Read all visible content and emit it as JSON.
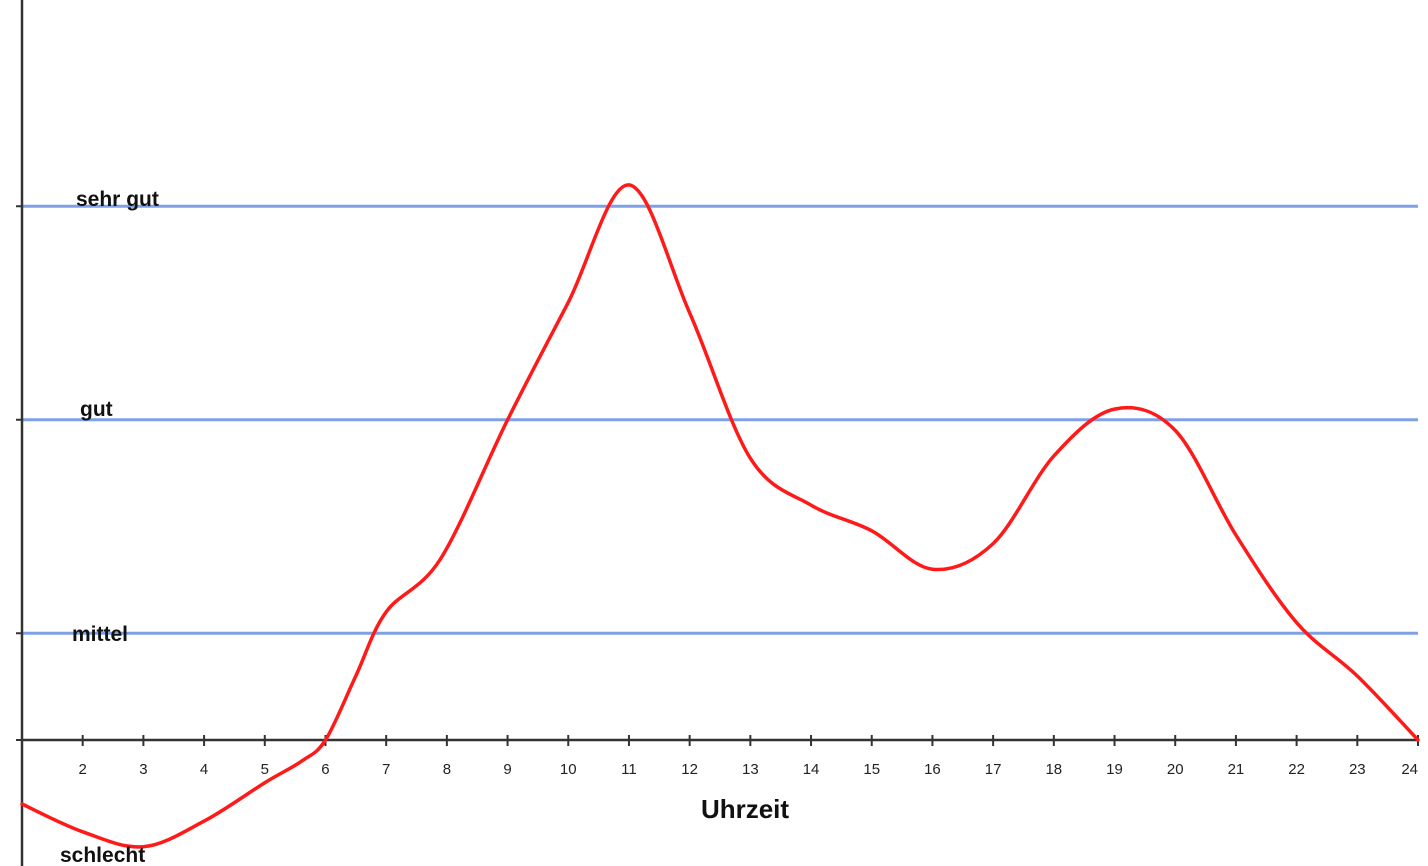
{
  "chart_data": {
    "type": "line",
    "title": "",
    "xlabel": "Uhrzeit",
    "ylabel": "",
    "x_ticks": [
      "2",
      "3",
      "4",
      "5",
      "6",
      "7",
      "8",
      "9",
      "10",
      "11",
      "12",
      "13",
      "14",
      "15",
      "16",
      "17",
      "18",
      "19",
      "20",
      "21",
      "22",
      "23",
      "24"
    ],
    "xlim": [
      1,
      24
    ],
    "y_levels": [
      {
        "label": "schlecht",
        "value": -0.5
      },
      {
        "label": "mittel",
        "value": 0.5
      },
      {
        "label": "gut",
        "value": 1.5
      },
      {
        "label": "sehr gut",
        "value": 2.5
      }
    ],
    "ylim": [
      -0.6,
      3.5
    ],
    "grid": true,
    "legend": "none",
    "line_color": "#ff1a1a",
    "grid_color": "#7f9fe6",
    "series": [
      {
        "x": [
          1,
          2,
          3,
          4,
          5,
          5.6,
          6,
          6.5,
          7,
          7.9,
          9,
          10,
          11,
          12,
          13,
          14,
          15,
          16,
          17,
          18,
          19,
          20,
          21,
          22,
          23,
          24
        ],
        "y": [
          -0.3,
          -0.43,
          -0.5,
          -0.38,
          -0.2,
          -0.1,
          0.0,
          0.3,
          0.6,
          0.85,
          1.5,
          2.05,
          2.6,
          2.0,
          1.32,
          1.1,
          0.98,
          0.8,
          0.92,
          1.33,
          1.55,
          1.45,
          0.96,
          0.55,
          0.3,
          0.0
        ]
      }
    ]
  }
}
